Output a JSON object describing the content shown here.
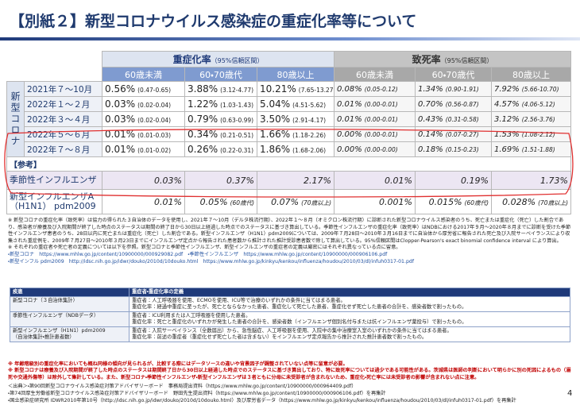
{
  "title": "【別紙２】新型コロナウイルス感染症の重症化率等について",
  "main_table": {
    "header": {
      "severe": {
        "title": "重症化率",
        "note": "（95%信頼区間）"
      },
      "fatal": {
        "title": "致死率",
        "note": "（95%信頼区間）"
      },
      "age_groups": [
        "60歳未満",
        "60・70歳代",
        "80歳以上"
      ]
    },
    "group_label": "新型コロナ",
    "rows": [
      {
        "period": "2021年７～10月",
        "cells": [
          {
            "value": "0.56%",
            "detail": "(0.47-0.65)"
          },
          {
            "value": "3.88%",
            "detail": "(3.12-4.77)"
          },
          {
            "value": "10.21%",
            "detail": "(7.65-13.27)"
          },
          {
            "value": "0.08%",
            "detail": "(0.05-0.12)"
          },
          {
            "value": "1.34%",
            "detail": "(0.90-1.91)"
          },
          {
            "value": "7.92%",
            "detail": "(5.66-10.70)"
          }
        ]
      },
      {
        "period": "2022年１～２月",
        "cells": [
          {
            "value": "0.03%",
            "detail": "(0.02-0.04)"
          },
          {
            "value": "1.22%",
            "detail": "(1.03-1.43)"
          },
          {
            "value": "5.04%",
            "detail": "(4.51-5.62)"
          },
          {
            "value": "0.01%",
            "detail": "(0.00-0.01)"
          },
          {
            "value": "0.70%",
            "detail": "(0.56-0.87)"
          },
          {
            "value": "4.57%",
            "detail": "(4.06-5.12)"
          }
        ]
      },
      {
        "period": "2022年３～４月",
        "cells": [
          {
            "value": "0.03%",
            "detail": "(0.02-0.04)"
          },
          {
            "value": "0.79%",
            "detail": "(0.63-0.99)"
          },
          {
            "value": "3.50%",
            "detail": "(2.91-4.17)"
          },
          {
            "value": "0.01%",
            "detail": "(0.00-0.01)"
          },
          {
            "value": "0.43%",
            "detail": "(0.31-0.58)"
          },
          {
            "value": "3.12%",
            "detail": "(2.56-3.76)"
          }
        ]
      },
      {
        "period": "2022年５～６月",
        "cells": [
          {
            "value": "0.01%",
            "detail": "(0.01-0.03)"
          },
          {
            "value": "0.34%",
            "detail": "(0.21-0.51)"
          },
          {
            "value": "1.66%",
            "detail": "(1.18-2.26)"
          },
          {
            "value": "0.00%",
            "detail": "(0.00-0.01)"
          },
          {
            "value": "0.14%",
            "detail": "(0.07-0.27)"
          },
          {
            "value": "1.53%",
            "detail": "(1.08-2.12)"
          }
        ]
      },
      {
        "period": "2022年７～８月",
        "cells": [
          {
            "value": "0.01%",
            "detail": "(0.01-0.02)"
          },
          {
            "value": "0.26%",
            "detail": "(0.22-0.31)"
          },
          {
            "value": "1.86%",
            "detail": "(1.68-2.06)"
          },
          {
            "value": "0.00%",
            "detail": "(0.00-0.00)"
          },
          {
            "value": "0.18%",
            "detail": "(0.15-0.23)"
          },
          {
            "value": "1.69%",
            "detail": "(1.51-1.88)"
          }
        ]
      }
    ],
    "reference_label": "【参考】",
    "reference_rows": [
      {
        "label": [
          "季節性インフルエンザ"
        ],
        "cells": [
          {
            "value": "0.03%"
          },
          {
            "value": "0.37%"
          },
          {
            "value": "2.17%"
          },
          {
            "value": "0.01%"
          },
          {
            "value": "0.19%"
          },
          {
            "value": "1.73%"
          }
        ]
      },
      {
        "label": [
          "新型インフルエンザA",
          "（H1N1） pdm2009"
        ],
        "cells": [
          {
            "value": "0.01%"
          },
          {
            "value": "0.05%",
            "detail": "(60歳代)"
          },
          {
            "value": "0.07%",
            "detail": "(70歳以上)"
          },
          {
            "value": "0.001%"
          },
          {
            "value": "0.015%",
            "detail": "(60歳代)"
          },
          {
            "value": "0.028%",
            "detail": "(70歳以上)"
          }
        ]
      }
    ]
  },
  "notes": {
    "paragraphs": [
      "※ 新型コロナの重症化率（致死率）は協力の得られた３自治体のデータを使用し、2021年７～10月（デルタ株流行期）、2022年１～８月（オミクロン株流行期）に診断された新型コロナウイルス感染者のうち、死亡または重症化（死亡）した割合であり、感染者が療養及び入院期間が終了した時点のステータスは期間の終了日から30日以上経過した時点でのステータスに基づき算出している。季節性インフルエンザの重症化率（致死率）はNDBにおける2017年９月～2020年８月までに診断を受けた季節性インフルエンザ患者のうち、28日以内に死亡または重症化（死亡）した割合である。新型インフルエンザ（H1N1）pdm2009については、2009年７月28日～2010年３月16日までに自治体から厚労省に報告された死亡及び入院サーベイランスにより収集された重症例を、2009年７月27日～2010年３月23日までにインフルエンザ定点から報告された患者数から推計された推計受診患者数で除して算出している。95%信頼区間はClopper-Pearson's exact binomial confidence interval により算出。",
      "※ それぞれの重症者や死亡者の定義については以下を参照。新型コロナと季節性インフルエンザ、新型インフルエンザの重症者の定義は厳密にはそれぞれ異なっている点に留意。"
    ],
    "links": [
      "・新型コロナ　https://www.mhlw.go.jp/content/10900000/000929082.pdf　・季節性インフルエンザ　https://www.mhlw.go.jp/content/10900000/000906106.pdf",
      "・新型インフル pdm2009　http://idsc.nih.go.jp/idwr/douko/2010d/10douko.html　https://www.mhlw.go.jp/kinkyu/kenkou/influenza/houdou/2010/03/dl/infuh0317-01.pdf"
    ]
  },
  "definitions": {
    "header": [
      "疾患",
      "重症者・重症化率の定義"
    ],
    "rows": [
      {
        "disease": [
          "新型コロナ（３自治体集計）"
        ],
        "definitions": [
          "重症者：人工呼吸器を使用、ECMOを使用、ICU等で治療のいずれかの条件に当てはまる患者。",
          "重症化率：経過中重症に至ったが、死亡とならなかった患者、重症化して死亡した患者、重症化せず死亡した患者の合計を、感染者数で割ったもの。"
        ]
      },
      {
        "disease": [
          "季節性インフルエンザ（NDBデータ）"
        ],
        "definitions": [
          "重症者：ICU利用または人工呼吸器を使用した患者。",
          "重症化率：死亡と重症化のいずれかが発生した患者の合計を、感染者数（インフルエンザ個別名付与または抗インフルエンザ薬投与）で割ったもの。"
        ]
      },
      {
        "disease": [
          "新型インフルエンザ（H1N1）pdm2009",
          "（自治体集計・推計患者数）"
        ],
        "definitions": [
          "重症者：入院サーベイランス（全数届出）から、急性脳症、人工呼吸器を使用、入院中の集中治療室入室のいずれかの条件に当てはまる患者。",
          "重症化率：前述の重症者（重症化せず死亡した者は含まない）をインフルエンザ定点報告から推計された推計患者数で割ったもの。"
        ]
      }
    ]
  },
  "cautions": [
    "※ 年齢階級別の重症化率においても概ね同様の傾向が見られるが、比較する際にはデータソースの違いや背景因子が調整されていない点等に留意が必要。",
    "※ 新型コロナは療養及び入院期間が終了した時点のステータスは期間終了日から30日以上経過した時点でのステータスに基づき算出しており、特に致死率については過少である可能性がある。茨城県は医師の判断において明らかに別の死因によるもの（溺死や交通外傷等）は除外して集計している。また、新型コロナ・季節性インフルエンザ・新型インフルエンザは３者ともに分母に未受診者が含まれないため、重症化・死亡率には未受診者の影響が含まれない点に注意。"
  ],
  "sources": {
    "label": "＜出典＞",
    "items": [
      "・第90回新型コロナウイルス感染症対策アドバイザリーボード　事務局提出資料（https://www.mhlw.go.jp/content/10900000/000964409.pdf）",
      "・第74回厚生労働省新型コロナウイルス感染症対策アドバイザリーボード　野田先生提出資料（https://www.mhlw.go.jp/content/10900000/000906106.pdf）を再集計",
      "・国立感染症研究所 IDWR2010年第10号（http://idsc.nih.go.jp/idwr/douko/2010d/10douko.html）及び厚労省データ（https://www.mhlw.go.jp/kinkyu/kenkou/influenza/houdou/2010/03/dl/infuh0317-01.pdf）を再集計"
    ]
  },
  "page_number": "4"
}
